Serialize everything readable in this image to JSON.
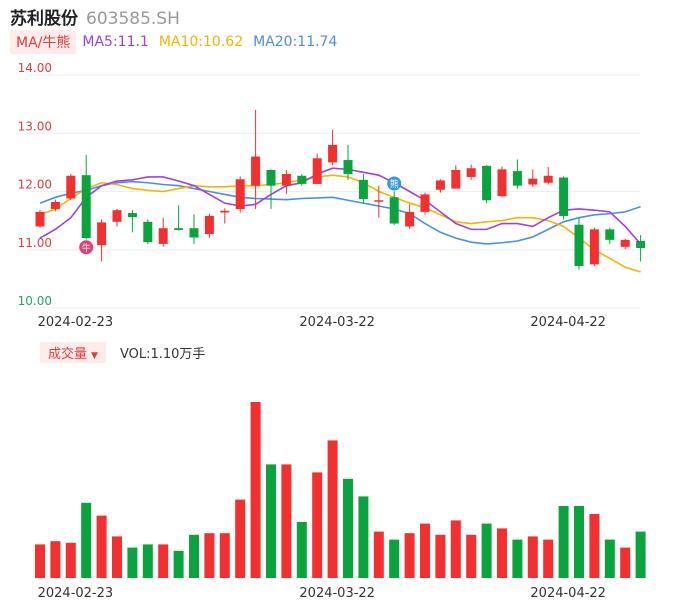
{
  "header": {
    "name": "苏利股份",
    "code": "603585.SH"
  },
  "ma_legend": {
    "selector_label": "MA/牛熊",
    "ma5": "MA5:11.1",
    "ma10": "MA10:10.62",
    "ma20": "MA20:11.74"
  },
  "volume_legend": {
    "selector_label": "成交量",
    "vol_text": "VOL:1.10万手"
  },
  "colors": {
    "up": "#f23030",
    "down": "#0ba33e",
    "ma5": "#a040e0",
    "ma10": "#f5b400",
    "ma20": "#4a90e2",
    "grid": "#eeeeee",
    "price_label": "#e03e3e",
    "low_label": "#2aa06a"
  },
  "markers": [
    {
      "label": "牛",
      "index": 3,
      "color": "#e0407a"
    },
    {
      "label": "熊",
      "index": 23,
      "color": "#3399dd"
    }
  ],
  "chart_data": {
    "type": "candlestick",
    "y_axis": {
      "ticks": [
        "14.00",
        "13.00",
        "12.00",
        "11.00",
        "10.00"
      ],
      "ylim": [
        10.0,
        14.0
      ]
    },
    "x_axis_labels": [
      {
        "index": 1,
        "label": "2024-02-23"
      },
      {
        "index": 18,
        "label": "2024-03-22"
      },
      {
        "index": 33,
        "label": "2024-04-22"
      }
    ],
    "candles": [
      {
        "o": 11.4,
        "c": 11.65,
        "h": 11.68,
        "l": 11.38
      },
      {
        "o": 11.7,
        "c": 11.82,
        "h": 11.86,
        "l": 11.66
      },
      {
        "o": 11.88,
        "c": 12.27,
        "h": 12.3,
        "l": 11.85
      },
      {
        "o": 12.28,
        "c": 11.2,
        "h": 12.63,
        "l": 11.18
      },
      {
        "o": 11.08,
        "c": 11.47,
        "h": 11.52,
        "l": 10.8
      },
      {
        "o": 11.48,
        "c": 11.68,
        "h": 11.7,
        "l": 11.4
      },
      {
        "o": 11.63,
        "c": 11.56,
        "h": 11.68,
        "l": 11.3
      },
      {
        "o": 11.48,
        "c": 11.13,
        "h": 11.52,
        "l": 11.1
      },
      {
        "o": 11.1,
        "c": 11.37,
        "h": 11.55,
        "l": 11.05
      },
      {
        "o": 11.37,
        "c": 11.34,
        "h": 11.76,
        "l": 11.33
      },
      {
        "o": 11.37,
        "c": 11.21,
        "h": 11.61,
        "l": 11.1
      },
      {
        "o": 11.27,
        "c": 11.58,
        "h": 11.62,
        "l": 11.2
      },
      {
        "o": 11.64,
        "c": 11.67,
        "h": 11.71,
        "l": 11.45
      },
      {
        "o": 11.7,
        "c": 12.21,
        "h": 12.26,
        "l": 11.64
      },
      {
        "o": 12.1,
        "c": 12.6,
        "h": 13.4,
        "l": 11.7
      },
      {
        "o": 12.37,
        "c": 12.1,
        "h": 12.38,
        "l": 11.7
      },
      {
        "o": 12.1,
        "c": 12.3,
        "h": 12.37,
        "l": 11.96
      },
      {
        "o": 12.27,
        "c": 12.13,
        "h": 12.3,
        "l": 12.1
      },
      {
        "o": 12.13,
        "c": 12.57,
        "h": 12.65,
        "l": 12.13
      },
      {
        "o": 12.5,
        "c": 12.8,
        "h": 13.06,
        "l": 12.45
      },
      {
        "o": 12.54,
        "c": 12.3,
        "h": 12.8,
        "l": 12.2
      },
      {
        "o": 12.2,
        "c": 11.87,
        "h": 12.3,
        "l": 11.8
      },
      {
        "o": 11.85,
        "c": 11.85,
        "h": 12.1,
        "l": 11.55
      },
      {
        "o": 11.9,
        "c": 11.45,
        "h": 12.0,
        "l": 11.42
      },
      {
        "o": 11.4,
        "c": 11.65,
        "h": 11.78,
        "l": 11.36
      },
      {
        "o": 11.65,
        "c": 11.95,
        "h": 11.98,
        "l": 11.6
      },
      {
        "o": 12.03,
        "c": 12.19,
        "h": 12.21,
        "l": 11.98
      },
      {
        "o": 12.05,
        "c": 12.37,
        "h": 12.45,
        "l": 12.05
      },
      {
        "o": 12.25,
        "c": 12.4,
        "h": 12.46,
        "l": 12.2
      },
      {
        "o": 12.44,
        "c": 11.85,
        "h": 12.45,
        "l": 11.8
      },
      {
        "o": 11.92,
        "c": 12.38,
        "h": 12.43,
        "l": 11.9
      },
      {
        "o": 12.35,
        "c": 12.1,
        "h": 12.55,
        "l": 12.05
      },
      {
        "o": 12.12,
        "c": 12.22,
        "h": 12.38,
        "l": 12.08
      },
      {
        "o": 12.15,
        "c": 12.27,
        "h": 12.42,
        "l": 12.12
      },
      {
        "o": 12.24,
        "c": 11.58,
        "h": 12.26,
        "l": 11.52
      },
      {
        "o": 11.43,
        "c": 10.72,
        "h": 11.55,
        "l": 10.66
      },
      {
        "o": 10.75,
        "c": 11.35,
        "h": 11.38,
        "l": 10.72
      },
      {
        "o": 11.35,
        "c": 11.17,
        "h": 11.38,
        "l": 11.1
      },
      {
        "o": 11.05,
        "c": 11.17,
        "h": 11.19,
        "l": 11.01
      },
      {
        "o": 11.15,
        "c": 11.03,
        "h": 11.25,
        "l": 10.8
      }
    ],
    "ma5": [
      11.2,
      11.35,
      11.55,
      11.9,
      12.1,
      12.18,
      12.2,
      12.25,
      12.25,
      12.18,
      12.1,
      11.95,
      11.8,
      11.75,
      11.78,
      11.95,
      12.1,
      12.15,
      12.3,
      12.4,
      12.38,
      12.33,
      12.28,
      12.15,
      12.0,
      11.85,
      11.65,
      11.45,
      11.35,
      11.35,
      11.45,
      11.45,
      11.4,
      11.55,
      11.68,
      11.7,
      11.68,
      11.65,
      11.4,
      11.1
    ],
    "ma10": [
      11.6,
      11.7,
      11.88,
      12.05,
      12.15,
      12.12,
      12.05,
      12.02,
      12.0,
      12.05,
      12.1,
      12.08,
      12.08,
      12.1,
      12.1,
      12.12,
      12.15,
      12.2,
      12.25,
      12.28,
      12.25,
      12.15,
      12.0,
      11.9,
      11.8,
      11.72,
      11.6,
      11.48,
      11.45,
      11.48,
      11.5,
      11.55,
      11.55,
      11.5,
      11.4,
      11.2,
      11.0,
      10.85,
      10.7,
      10.62
    ],
    "ma20": [
      11.8,
      11.9,
      11.97,
      12.02,
      12.1,
      12.15,
      12.17,
      12.15,
      12.12,
      12.1,
      12.05,
      12.0,
      11.95,
      11.9,
      11.88,
      11.87,
      11.86,
      11.88,
      11.89,
      11.9,
      11.85,
      11.8,
      11.75,
      11.7,
      11.62,
      11.45,
      11.3,
      11.2,
      11.13,
      11.1,
      11.12,
      11.15,
      11.22,
      11.35,
      11.48,
      11.55,
      11.6,
      11.62,
      11.65,
      11.74
    ],
    "volume": {
      "ylim": [
        0,
        11000
      ],
      "values": [
        2100,
        2300,
        2200,
        4700,
        3900,
        2600,
        1900,
        2100,
        2100,
        1700,
        2700,
        2800,
        2800,
        4900,
        11000,
        7100,
        7100,
        3500,
        6600,
        8600,
        6200,
        5100,
        2900,
        2400,
        2800,
        3400,
        2700,
        3600,
        2700,
        3400,
        3100,
        2400,
        2600,
        2400,
        4500,
        4500,
        4000,
        2400,
        1900,
        2900
      ]
    }
  }
}
